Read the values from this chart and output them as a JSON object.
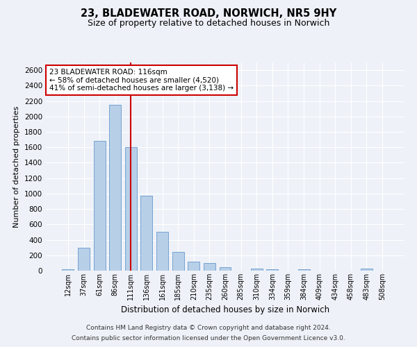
{
  "title1": "23, BLADEWATER ROAD, NORWICH, NR5 9HY",
  "title2": "Size of property relative to detached houses in Norwich",
  "xlabel": "Distribution of detached houses by size in Norwich",
  "ylabel": "Number of detached properties",
  "categories": [
    "12sqm",
    "37sqm",
    "61sqm",
    "86sqm",
    "111sqm",
    "136sqm",
    "161sqm",
    "185sqm",
    "210sqm",
    "235sqm",
    "260sqm",
    "285sqm",
    "310sqm",
    "334sqm",
    "359sqm",
    "384sqm",
    "409sqm",
    "434sqm",
    "458sqm",
    "483sqm",
    "508sqm"
  ],
  "values": [
    20,
    300,
    1680,
    2150,
    1600,
    970,
    500,
    245,
    120,
    100,
    45,
    0,
    30,
    20,
    0,
    20,
    0,
    0,
    0,
    25,
    0
  ],
  "bar_color": "#b8cfe8",
  "bar_edge_color": "#6699cc",
  "vline_index": 4,
  "vline_color": "#cc0000",
  "annotation_line1": "23 BLADEWATER ROAD: 116sqm",
  "annotation_line2": "← 58% of detached houses are smaller (4,520)",
  "annotation_line3": "41% of semi-detached houses are larger (3,138) →",
  "annotation_box_color": "#ffffff",
  "annotation_box_edge": "#cc0000",
  "background_color": "#eef2f8",
  "grid_color": "#ffffff",
  "ylim": [
    0,
    2700
  ],
  "yticks": [
    0,
    200,
    400,
    600,
    800,
    1000,
    1200,
    1400,
    1600,
    1800,
    2000,
    2200,
    2400,
    2600
  ],
  "footer1": "Contains HM Land Registry data © Crown copyright and database right 2024.",
  "footer2": "Contains public sector information licensed under the Open Government Licence v3.0."
}
